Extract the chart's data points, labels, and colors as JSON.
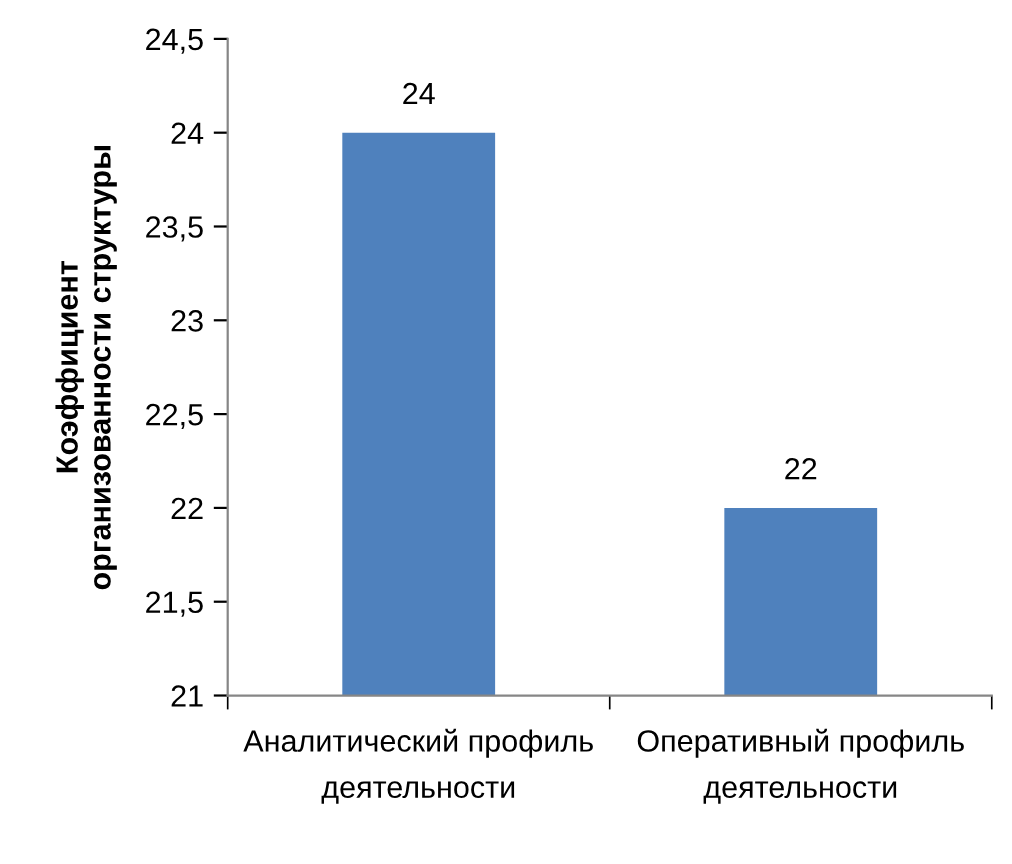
{
  "chart_data": {
    "type": "bar",
    "categories": [
      "Аналитический профиль деятельности",
      "Оперативный профиль деятельности"
    ],
    "values": [
      24,
      22
    ],
    "color": "#4f81bd",
    "ylabel": "Коэффициент\nорганизованности структуры",
    "ylim": [
      21,
      24.5
    ],
    "yticks": [
      21,
      {
        "value": 21.5,
        "label": "21,5"
      },
      22,
      {
        "value": 22.5,
        "label": "22,5"
      },
      23,
      {
        "value": 23.5,
        "label": "23,5"
      },
      24,
      {
        "value": 24.5,
        "label": "24,5"
      }
    ],
    "data_labels": true,
    "grid": false,
    "legend": false
  }
}
